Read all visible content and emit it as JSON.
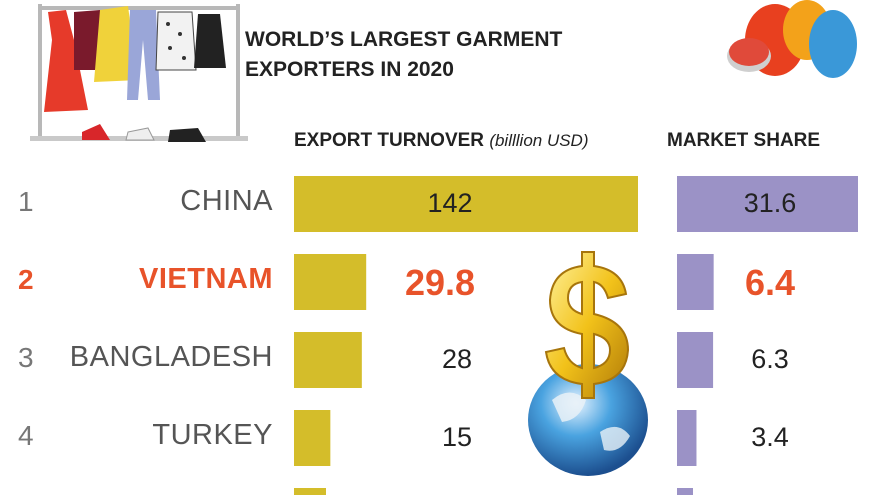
{
  "title_line1": "WORLD’S LARGEST GARMENT",
  "title_line2": "EXPORTERS IN 2020",
  "headers": {
    "turnover": "EXPORT TURNOVER",
    "turnover_unit": "(billlion USD)",
    "share": "MARKET SHARE"
  },
  "colors": {
    "turnover_bar": "#d4bd2a",
    "share_bar": "#9b92c6",
    "highlight": "#e8532a"
  },
  "chart_data": [
    {
      "type": "bar",
      "title": "EXPORT TURNOVER (billlion USD)",
      "orientation": "horizontal",
      "categories": [
        "CHINA",
        "VIETNAM",
        "BANGLADESH",
        "TURKEY"
      ],
      "ranks": [
        "1",
        "2",
        "3",
        "4"
      ],
      "values": [
        142,
        29.8,
        28,
        15
      ],
      "labels": [
        "142",
        "29.8",
        "28",
        "15"
      ],
      "highlight_index": 1
    },
    {
      "type": "bar",
      "title": "MARKET SHARE",
      "orientation": "horizontal",
      "categories": [
        "CHINA",
        "VIETNAM",
        "BANGLADESH",
        "TURKEY"
      ],
      "values": [
        31.6,
        6.4,
        6.3,
        3.4
      ],
      "labels": [
        "31.6",
        "6.4",
        "6.3",
        "3.4"
      ],
      "highlight_index": 1
    }
  ],
  "illustrations": [
    "clothing-rack-icon",
    "thread-spools-icon",
    "dollar-globe-icon"
  ]
}
